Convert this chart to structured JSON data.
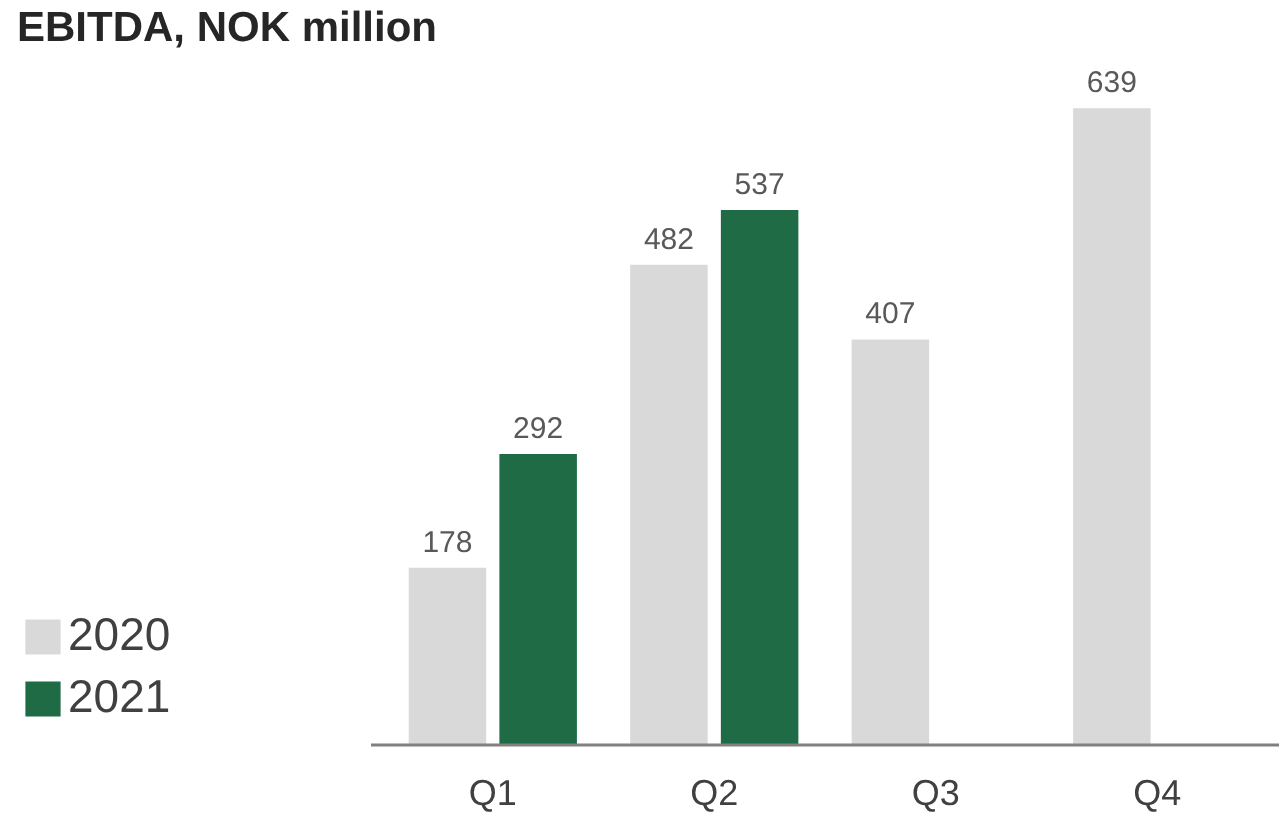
{
  "chart_data": {
    "type": "bar",
    "title": "EBITDA, NOK million",
    "categories": [
      "Q1",
      "Q2",
      "Q3",
      "Q4"
    ],
    "series": [
      {
        "name": "2020",
        "color": "#d9d9d9",
        "values": [
          178,
          482,
          407,
          639
        ]
      },
      {
        "name": "2021",
        "color": "#1f6b45",
        "values": [
          292,
          537,
          null,
          null
        ]
      }
    ],
    "data_labels": true,
    "legend": "bottom left",
    "grid": false
  }
}
